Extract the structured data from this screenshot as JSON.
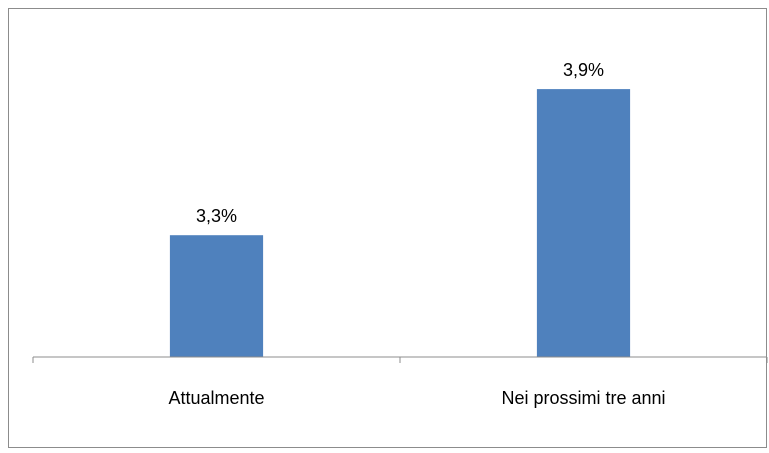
{
  "chart_data": {
    "type": "bar",
    "categories": [
      "Attualmente",
      "Nei prossimi tre anni"
    ],
    "values": [
      3.3,
      3.9
    ],
    "value_labels": [
      "3,3%",
      "3,9%"
    ],
    "title": "",
    "xlabel": "",
    "ylabel": "",
    "ylim": [
      2.8,
      4.2
    ],
    "grid": false,
    "legend": "none",
    "bar_color": "#4f81bd",
    "axis_color": "#8c8c8c"
  }
}
